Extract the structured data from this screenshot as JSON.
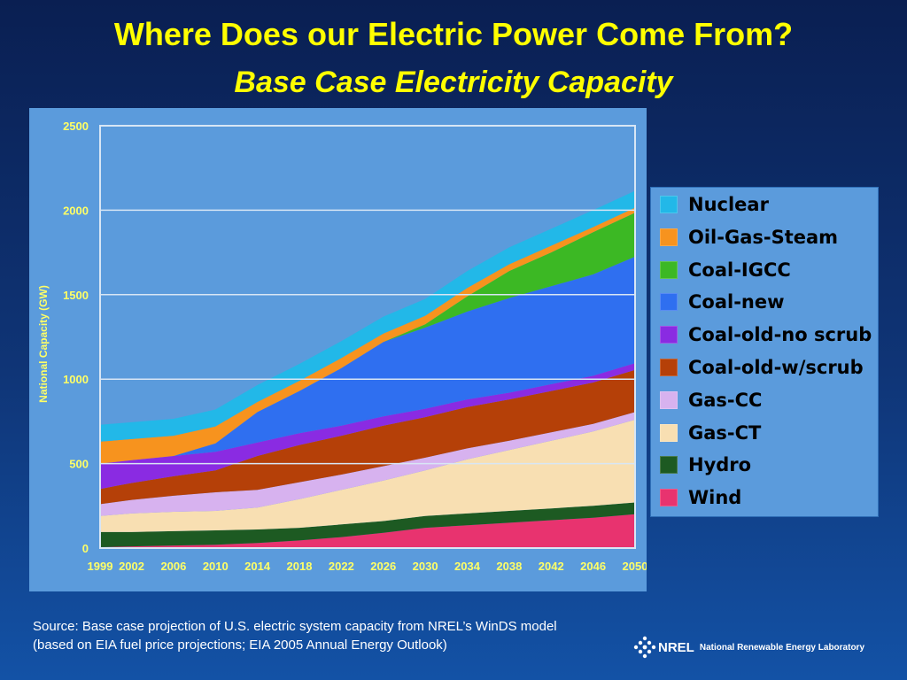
{
  "header": {
    "title": "Where Does our Electric Power Come From?",
    "subtitle": "Base Case Electricity Capacity"
  },
  "footer": {
    "source": "Source: Base case projection of U.S. electric system capacity from NREL’s WinDS model (based on EIA fuel price projections; EIA 2005 Annual Energy Outlook)",
    "logo_acronym": "NREL",
    "logo_name": "National Renewable Energy Laboratory"
  },
  "chart_data": {
    "type": "area",
    "stacked": true,
    "ylabel": "National Capacity (GW)",
    "xlabel": "",
    "ylim": [
      0,
      2500
    ],
    "yticks": [
      0,
      500,
      1000,
      1500,
      2000,
      2500
    ],
    "x": [
      1999,
      2002,
      2006,
      2010,
      2014,
      2018,
      2022,
      2026,
      2030,
      2034,
      2038,
      2042,
      2046,
      2050
    ],
    "xtick_labels": [
      "1999",
      "2002",
      "2006",
      "2010",
      "2014",
      "2018",
      "2022",
      "2026",
      "2030",
      "2034",
      "2038",
      "2042",
      "2046",
      "2050"
    ],
    "grid": true,
    "legend_position": "right",
    "series": [
      {
        "name": "Wind",
        "color": "#e8336f",
        "values": [
          5,
          10,
          15,
          20,
          30,
          45,
          65,
          90,
          120,
          135,
          150,
          165,
          180,
          200
        ]
      },
      {
        "name": "Hydro",
        "color": "#1d5a22",
        "values": [
          90,
          85,
          85,
          85,
          80,
          75,
          75,
          70,
          70,
          70,
          70,
          70,
          70,
          70
        ]
      },
      {
        "name": "Gas-CT",
        "color": "#f8dfb2",
        "values": [
          95,
          110,
          115,
          115,
          130,
          170,
          205,
          240,
          270,
          320,
          360,
          400,
          440,
          490
        ]
      },
      {
        "name": "Gas-CC",
        "color": "#d7b2ef",
        "values": [
          70,
          80,
          95,
          110,
          105,
          100,
          90,
          85,
          75,
          65,
          55,
          50,
          45,
          45
        ]
      },
      {
        "name": "Coal-old-w/scrub",
        "color": "#b54008",
        "values": [
          90,
          100,
          115,
          130,
          200,
          220,
          230,
          240,
          240,
          245,
          245,
          245,
          245,
          250
        ]
      },
      {
        "name": "Coal-old-no scrub",
        "color": "#8a2be2",
        "values": [
          150,
          135,
          120,
          110,
          80,
          70,
          60,
          55,
          50,
          45,
          40,
          40,
          40,
          40
        ]
      },
      {
        "name": "Coal-new",
        "color": "#2f6ff0",
        "values": [
          0,
          0,
          0,
          50,
          180,
          250,
          340,
          440,
          480,
          520,
          560,
          580,
          600,
          630
        ]
      },
      {
        "name": "Coal-IGCC",
        "color": "#3cb824",
        "values": [
          0,
          0,
          0,
          0,
          0,
          0,
          0,
          0,
          20,
          90,
          160,
          200,
          250,
          260
        ]
      },
      {
        "name": "Oil-Gas-Steam",
        "color": "#f7931e",
        "values": [
          130,
          125,
          120,
          100,
          60,
          60,
          60,
          50,
          50,
          50,
          40,
          40,
          30,
          30
        ]
      },
      {
        "name": "Nuclear",
        "color": "#22b8e8",
        "values": [
          100,
          100,
          100,
          100,
          100,
          100,
          100,
          100,
          100,
          100,
          100,
          100,
          100,
          100
        ]
      }
    ]
  },
  "legend_order": [
    "Nuclear",
    "Oil-Gas-Steam",
    "Coal-IGCC",
    "Coal-new",
    "Coal-old-no scrub",
    "Coal-old-w/scrub",
    "Gas-CC",
    "Gas-CT",
    "Hydro",
    "Wind"
  ]
}
